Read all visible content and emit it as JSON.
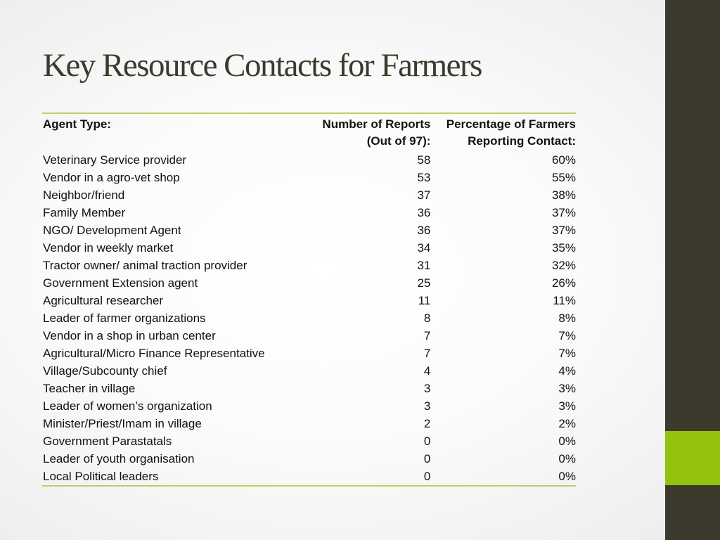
{
  "slide": {
    "title": "Key Resource Contacts for Farmers"
  },
  "colors": {
    "sidebar": "#3b3a2d",
    "accent": "#93c30e",
    "rule": "#b8d45c",
    "title": "#3b3a2d"
  },
  "table": {
    "headers": {
      "agent_type": "Agent Type:",
      "reports_line1": "Number of Reports",
      "reports_line2": "(Out of 97):",
      "percent_line1": "Percentage of Farmers",
      "percent_line2": "Reporting Contact:"
    },
    "rows": [
      {
        "agent": "Veterinary Service provider",
        "reports": "58",
        "percent": "60%"
      },
      {
        "agent": "Vendor in a agro-vet shop",
        "reports": "53",
        "percent": "55%"
      },
      {
        "agent": "Neighbor/friend",
        "reports": "37",
        "percent": "38%"
      },
      {
        "agent": "Family Member",
        "reports": "36",
        "percent": "37%"
      },
      {
        "agent": "NGO/ Development Agent",
        "reports": "36",
        "percent": "37%"
      },
      {
        "agent": "Vendor in weekly  market",
        "reports": "34",
        "percent": "35%"
      },
      {
        "agent": "Tractor owner/ animal traction provider",
        "reports": "31",
        "percent": "32%"
      },
      {
        "agent": "Government Extension agent",
        "reports": "25",
        "percent": "26%"
      },
      {
        "agent": "Agricultural researcher",
        "reports": "11",
        "percent": "11%"
      },
      {
        "agent": "Leader of farmer organizations",
        "reports": "8",
        "percent": "8%"
      },
      {
        "agent": "Vendor in a shop in urban center",
        "reports": "7",
        "percent": "7%"
      },
      {
        "agent": "Agricultural/Micro Finance Representative",
        "reports": "7",
        "percent": "7%"
      },
      {
        "agent": "Village/Subcounty chief",
        "reports": "4",
        "percent": "4%"
      },
      {
        "agent": "Teacher in village",
        "reports": "3",
        "percent": "3%"
      },
      {
        "agent": "Leader of women’s organization",
        "reports": "3",
        "percent": "3%"
      },
      {
        "agent": "Minister/Priest/Imam in village",
        "reports": "2",
        "percent": "2%"
      },
      {
        "agent": "Government Parastatals",
        "reports": "0",
        "percent": "0%"
      },
      {
        "agent": "Leader of youth organisation",
        "reports": "0",
        "percent": "0%"
      },
      {
        "agent": "Local Political leaders",
        "reports": "0",
        "percent": "0%"
      }
    ]
  }
}
